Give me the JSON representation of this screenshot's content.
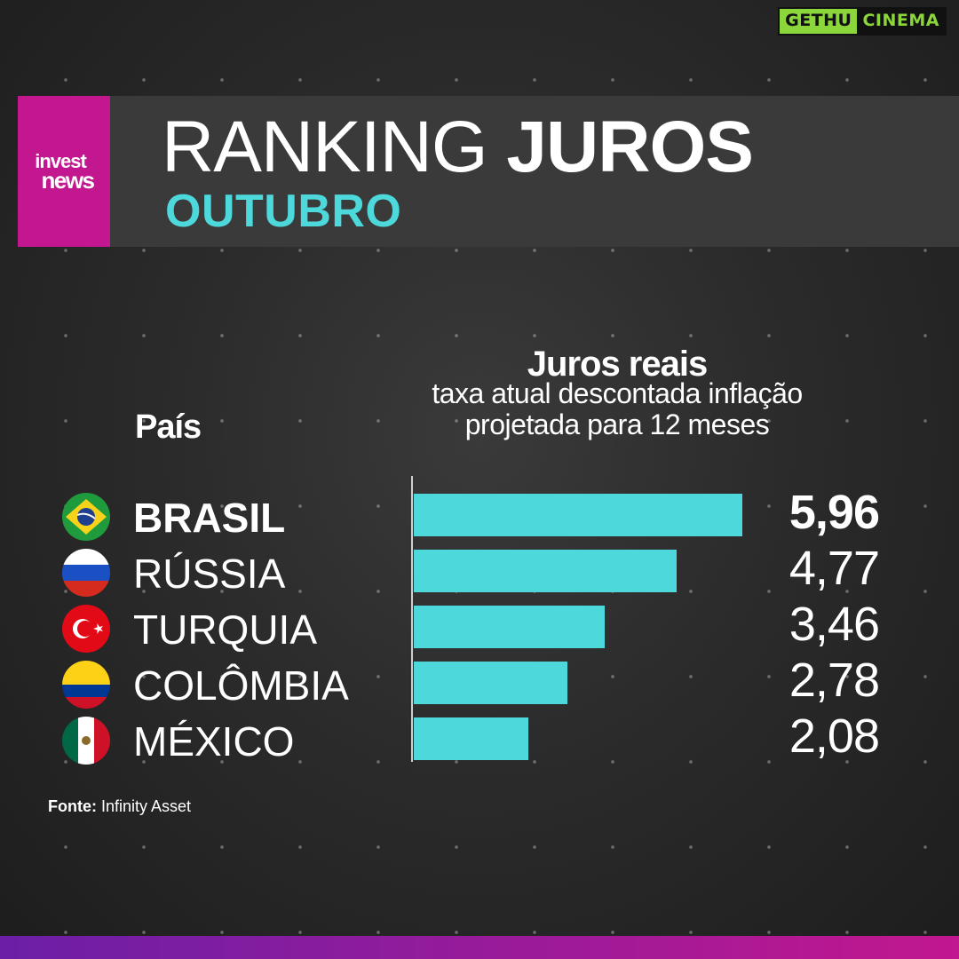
{
  "watermark": {
    "part1": "GETHU",
    "part2": "CINEMA"
  },
  "brand": {
    "logo_line1": "invest",
    "logo_line2": "news",
    "logo_color": "#c2178e"
  },
  "header": {
    "title_light": "RANKING",
    "title_bold": "JUROS",
    "subtitle": "OUTUBRO"
  },
  "columns": {
    "country_header": "País",
    "value_header": "Juros reais",
    "value_desc_line1": "taxa atual descontada inflação",
    "value_desc_line2": "projetada para 12 meses"
  },
  "source": {
    "label": "Fonte:",
    "value": "Infinity Asset"
  },
  "colors": {
    "bar": "#4dd8dc",
    "accent": "#4dd8dc",
    "footer_start": "#6b1fa6",
    "footer_end": "#c2178e"
  },
  "chart_data": {
    "type": "bar",
    "orientation": "horizontal",
    "categories": [
      "BRASIL",
      "RÚSSIA",
      "TURQUIA",
      "COLÔMBIA",
      "MÉXICO"
    ],
    "values": [
      5.96,
      4.77,
      3.46,
      2.78,
      2.08
    ],
    "value_labels": [
      "5,96",
      "4,77",
      "3,46",
      "2,78",
      "2,08"
    ],
    "flags": [
      "brazil-flag-icon",
      "russia-flag-icon",
      "turkey-flag-icon",
      "colombia-flag-icon",
      "mexico-flag-icon"
    ],
    "title": "Juros reais",
    "xlim": [
      0,
      5.96
    ],
    "grid": false,
    "legend": "none"
  }
}
